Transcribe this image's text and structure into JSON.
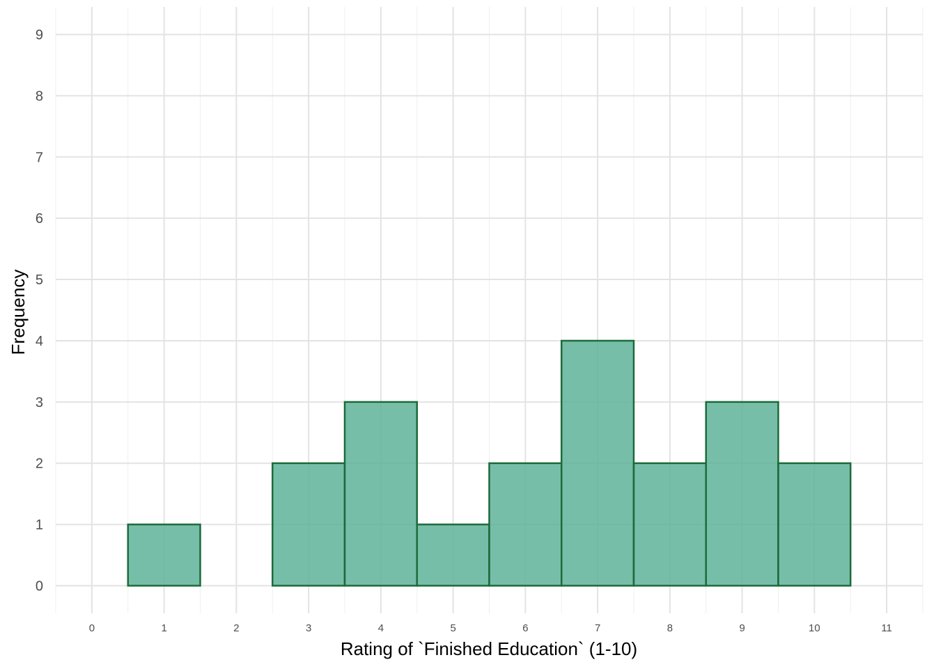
{
  "chart_data": {
    "type": "bar",
    "subtype": "histogram",
    "title": "",
    "xlabel": "Rating of `Finished Education` (1-10)",
    "ylabel": "Frequency",
    "bins": [
      {
        "x": 1,
        "value": 1
      },
      {
        "x": 2,
        "value": 0
      },
      {
        "x": 3,
        "value": 2
      },
      {
        "x": 4,
        "value": 3
      },
      {
        "x": 5,
        "value": 1
      },
      {
        "x": 6,
        "value": 2
      },
      {
        "x": 7,
        "value": 4
      },
      {
        "x": 8,
        "value": 2
      },
      {
        "x": 9,
        "value": 3
      },
      {
        "x": 10,
        "value": 2
      }
    ],
    "bin_width": 1,
    "xlim": [
      -0.5,
      11.5
    ],
    "ylim": [
      -0.45,
      9.45
    ],
    "x_ticks": [
      "0",
      "1",
      "2",
      "3",
      "4",
      "5",
      "6",
      "7",
      "8",
      "9",
      "10",
      "11"
    ],
    "y_ticks": [
      "0",
      "1",
      "2",
      "3",
      "4",
      "5",
      "6",
      "7",
      "8",
      "9"
    ],
    "grid": true,
    "legend": "none",
    "colors": {
      "bar_fill": "#5fb39a",
      "bar_stroke": "#1b6b3a",
      "background": "#ffffff"
    }
  }
}
